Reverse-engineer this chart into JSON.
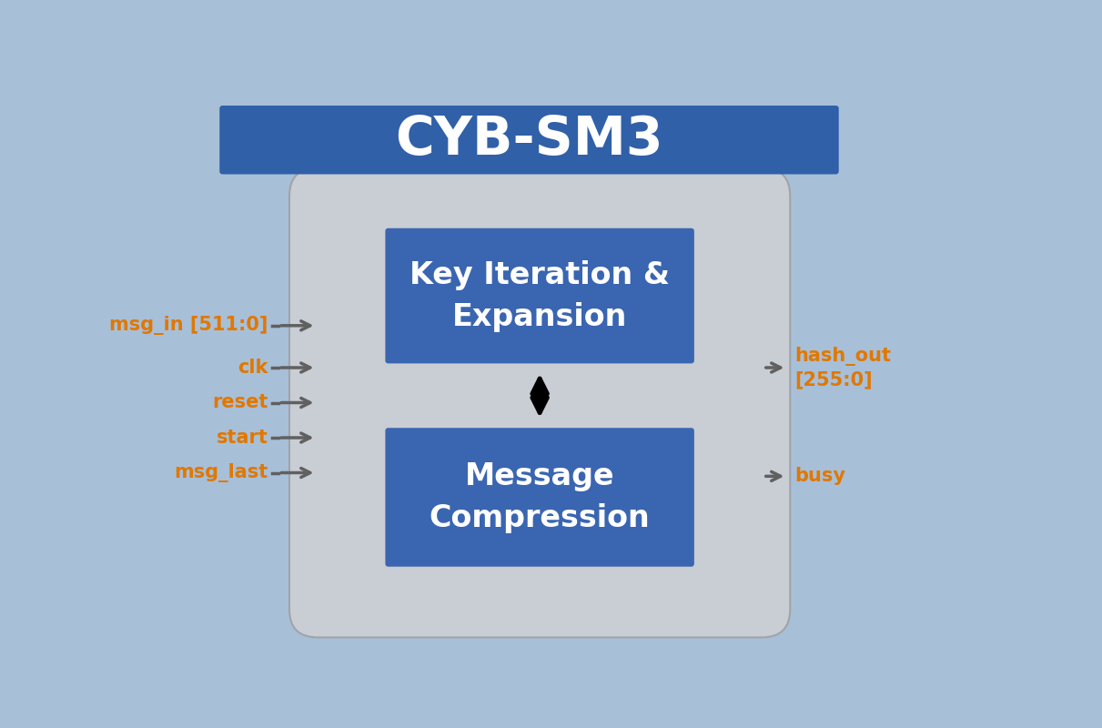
{
  "bg_color": "#a8bfd8",
  "title_text": "CYB-SM3",
  "title_bg_color": "#3060a8",
  "title_text_color": "#ffffff",
  "outer_box_facecolor": "#c9cdd4",
  "outer_box_edgecolor": "#a0a4aa",
  "inner_box_color": "#3a65b0",
  "signal_color": "#e07800",
  "arrow_color": "#606060",
  "block1_text": "Key Iteration &\nExpansion",
  "block2_text": "Message\nCompression",
  "left_signals": [
    "msg_in [511:0]",
    "clk",
    "reset",
    "start",
    "msg_last"
  ],
  "right_signals_top": "hash_out\n[255:0]",
  "right_signals_bot": "busy",
  "fig_width": 12.11,
  "fig_height": 8.0
}
